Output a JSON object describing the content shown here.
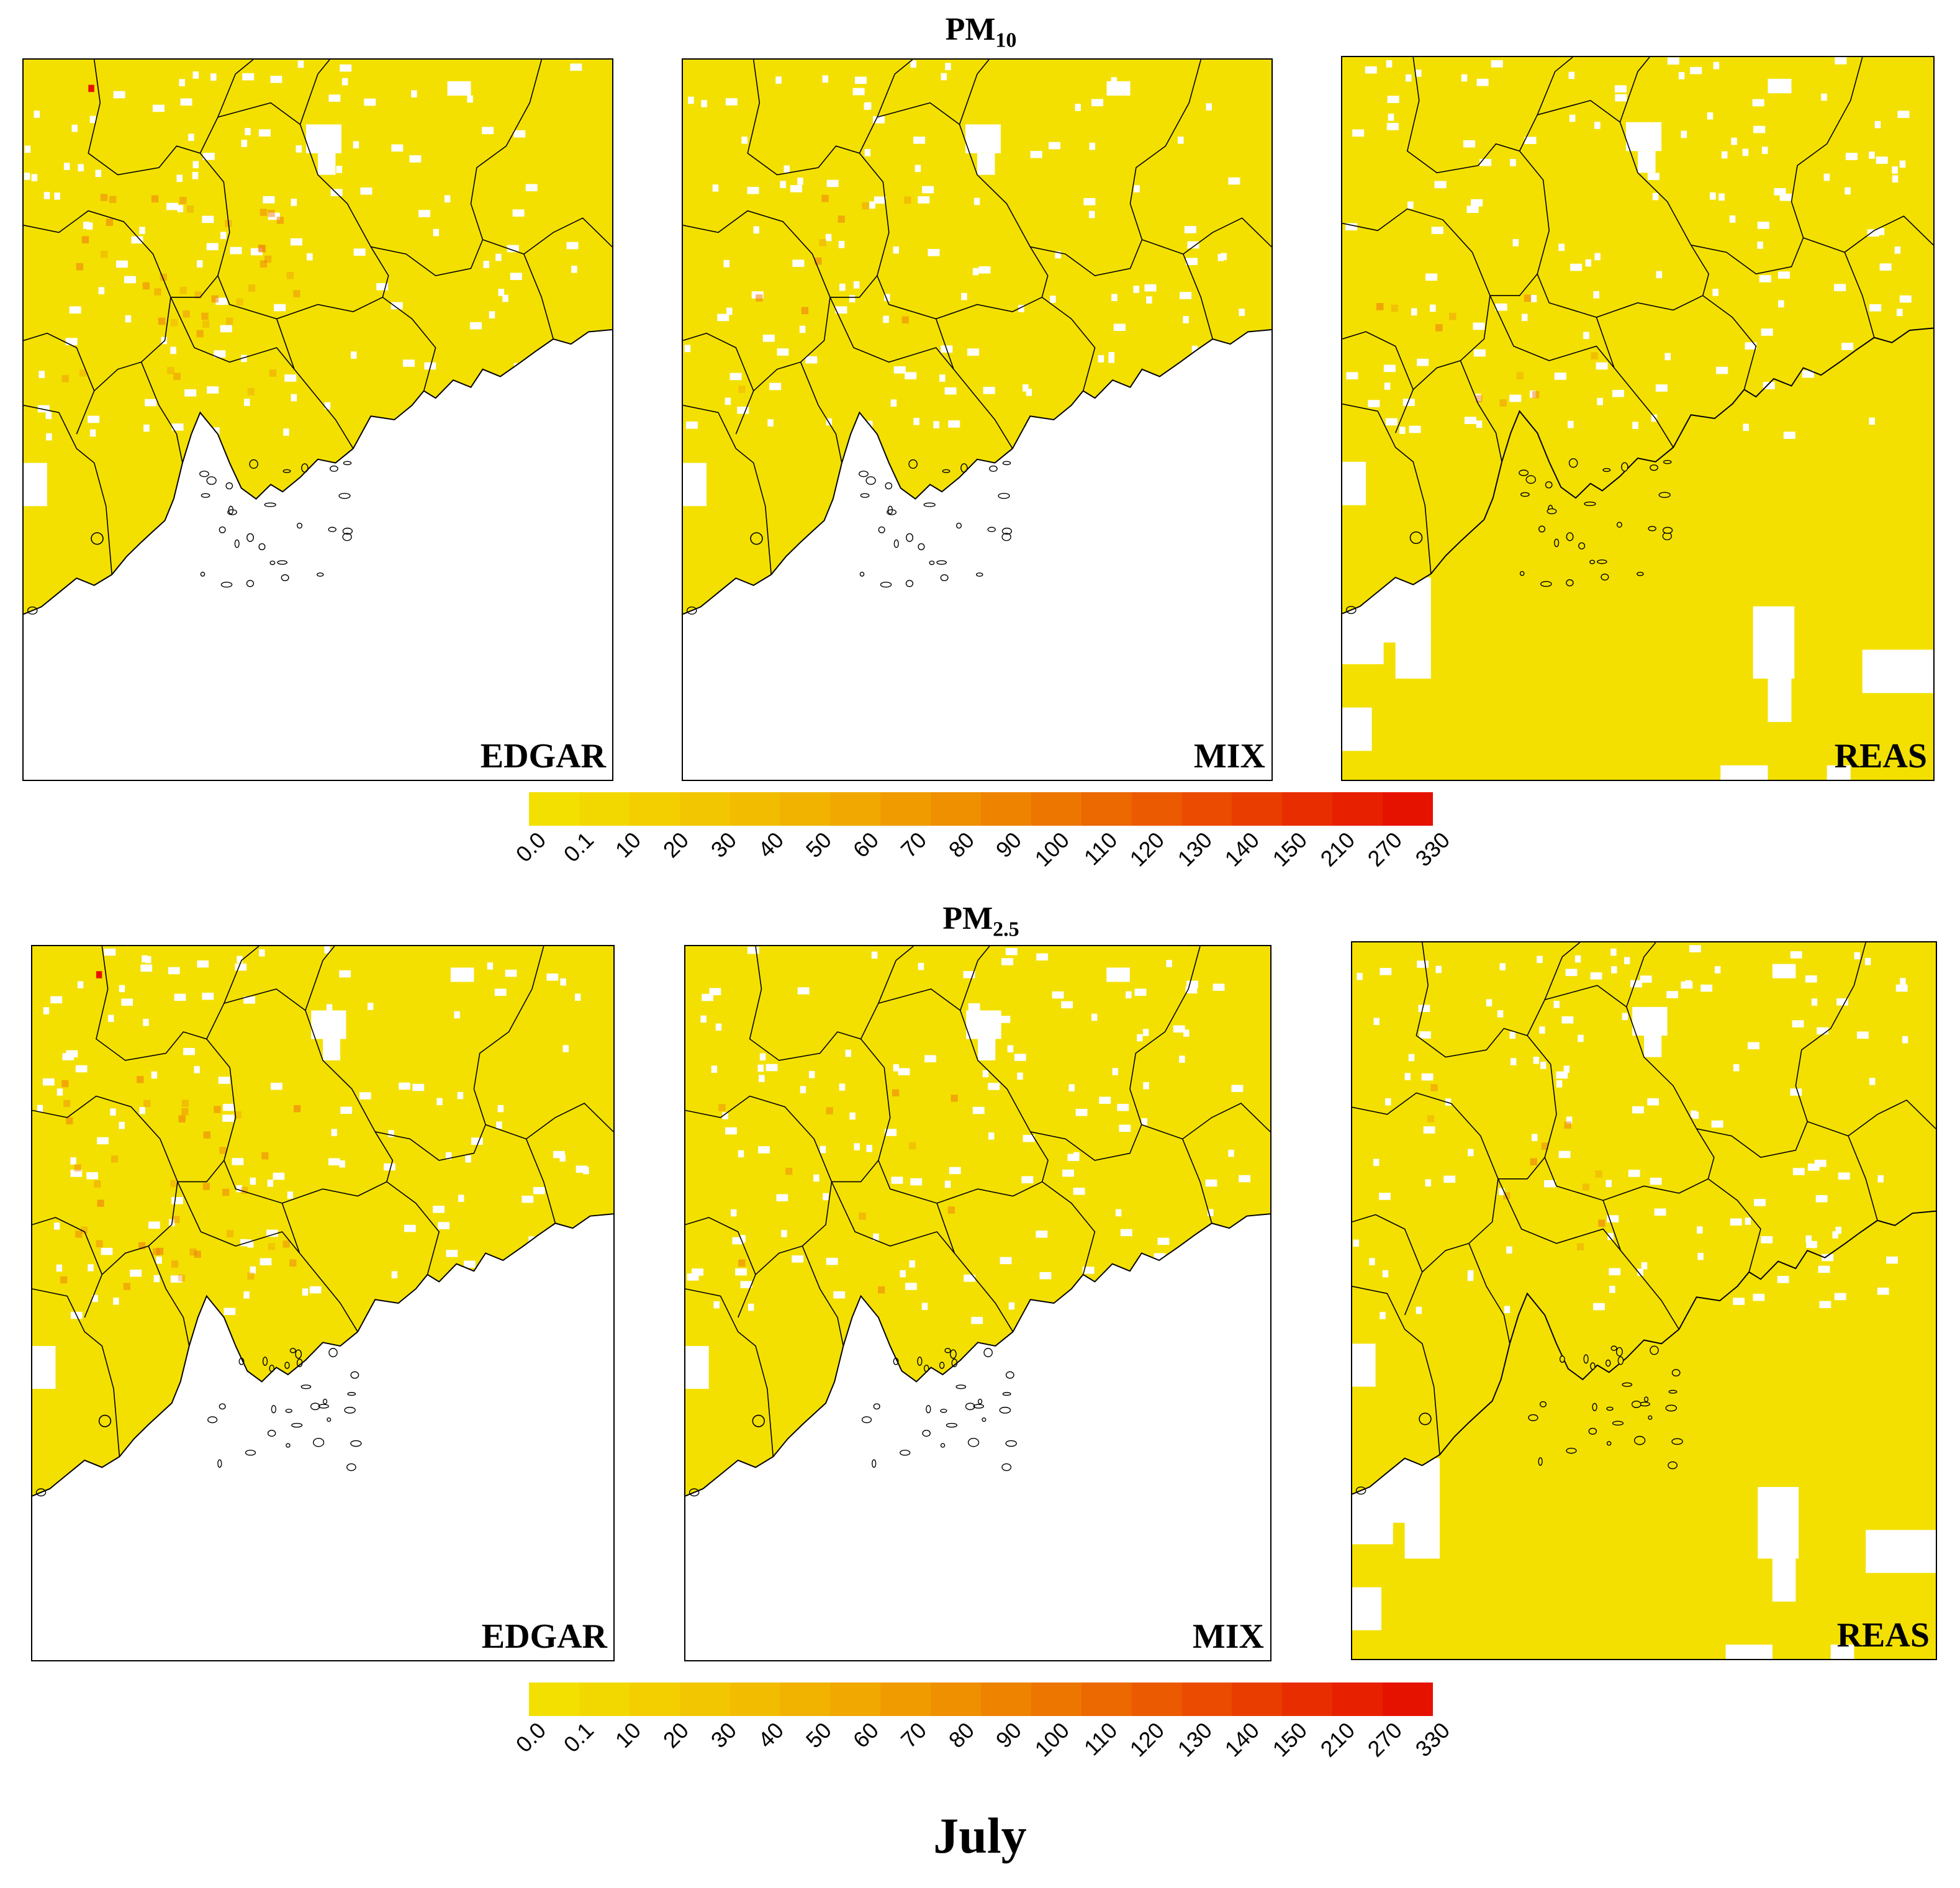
{
  "figure": {
    "month_label": "July",
    "pollutants": [
      {
        "title_main": "PM",
        "title_sub": "10",
        "maps": [
          {
            "label": "EDGAR",
            "ocean_filled": false
          },
          {
            "label": "MIX",
            "ocean_filled": false
          },
          {
            "label": "REAS",
            "ocean_filled": true
          }
        ]
      },
      {
        "title_main": "PM",
        "title_sub": "2.5",
        "maps": [
          {
            "label": "EDGAR",
            "ocean_filled": false
          },
          {
            "label": "MIX",
            "ocean_filled": false
          },
          {
            "label": "REAS",
            "ocean_filled": true
          }
        ]
      }
    ],
    "colorbar": {
      "tick_labels": [
        "0.0",
        "0.1",
        "10",
        "20",
        "30",
        "40",
        "50",
        "60",
        "70",
        "80",
        "90",
        "100",
        "110",
        "120",
        "130",
        "140",
        "150",
        "210",
        "270",
        "330"
      ],
      "colors": [
        "#f3e000",
        "#f3d800",
        "#f3cf00",
        "#f2c600",
        "#f2bd00",
        "#f1b300",
        "#f1a800",
        "#f09c00",
        "#ef9000",
        "#ee8300",
        "#ed7600",
        "#ec6800",
        "#eb5a00",
        "#ea4b00",
        "#e93d00",
        "#e82e00",
        "#e72000",
        "#e61200"
      ]
    },
    "colors": {
      "land_fill": "#f3e000",
      "hotspot": "#ef7a10",
      "border": "#000000"
    }
  }
}
